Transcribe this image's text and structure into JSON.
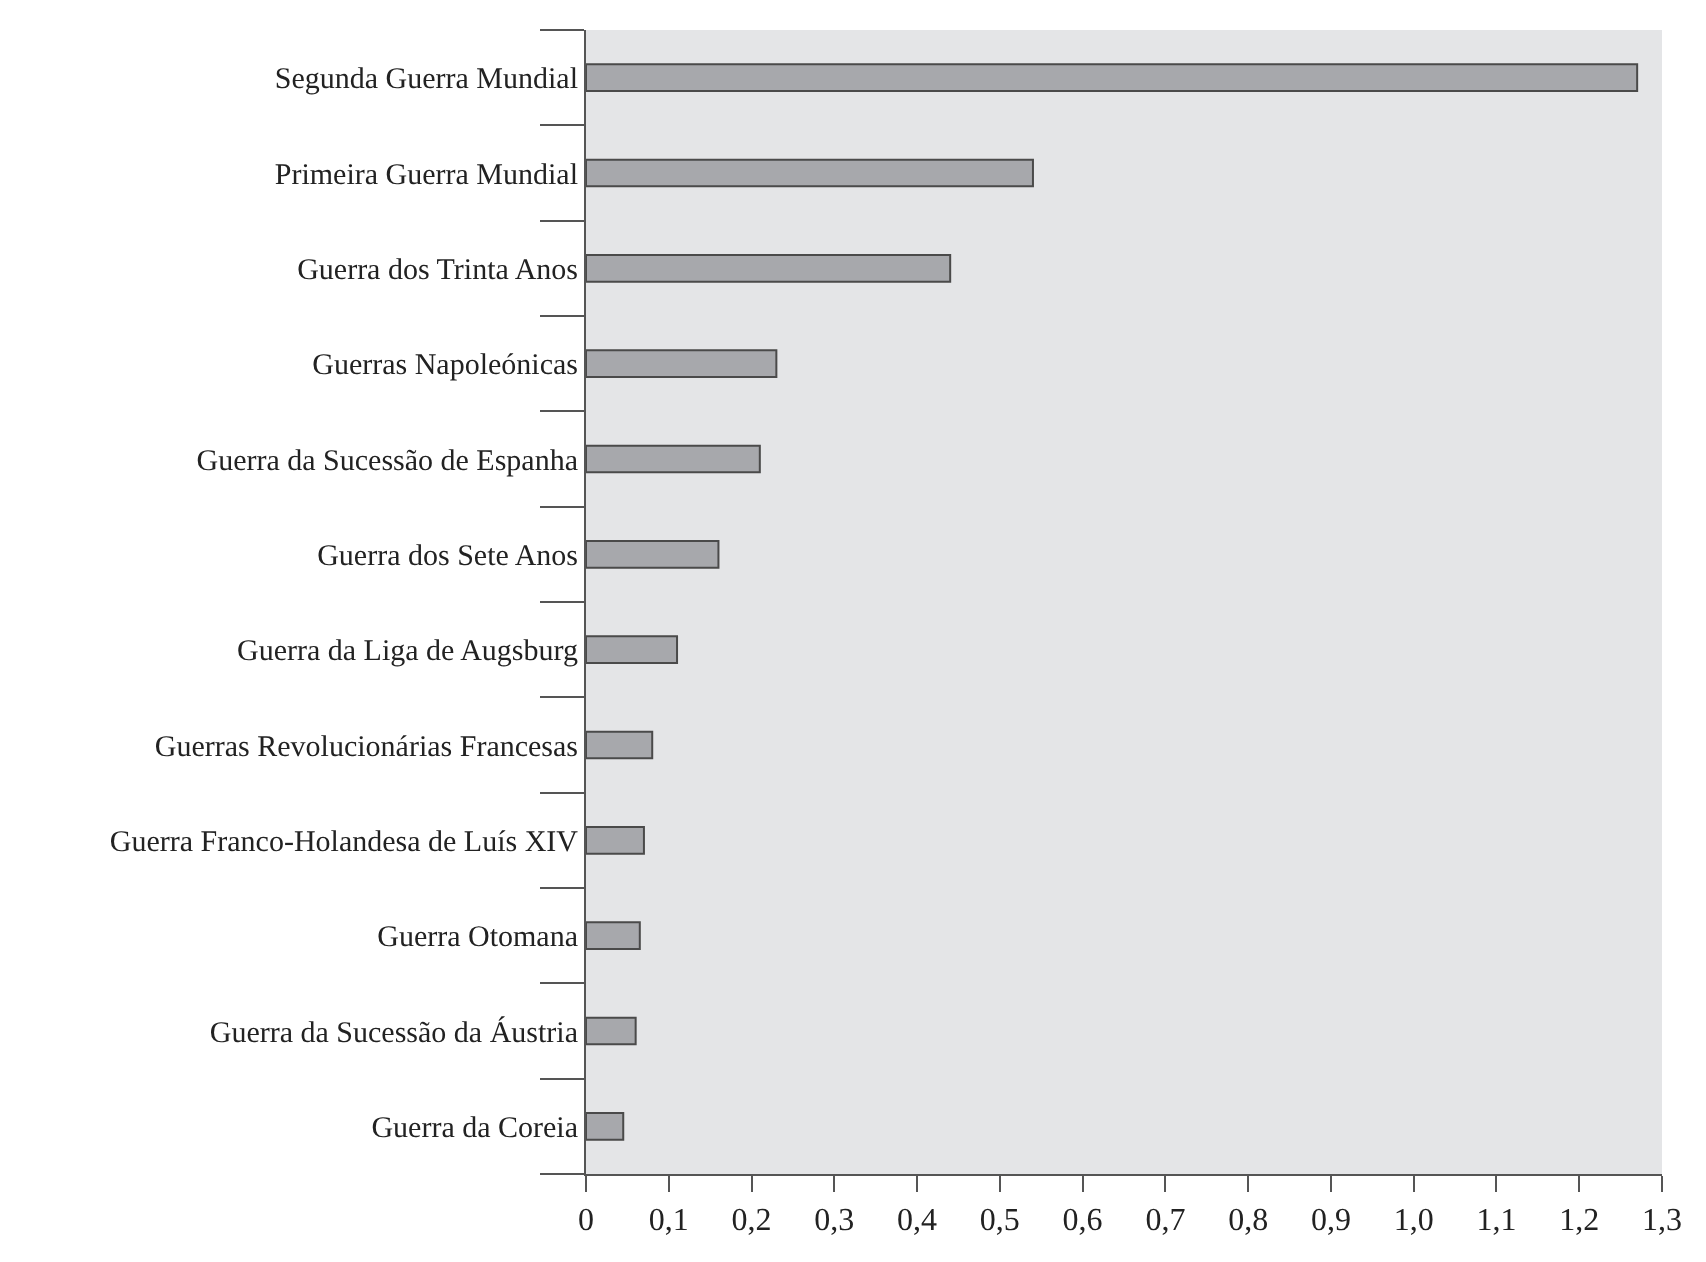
{
  "chart_data": {
    "type": "bar",
    "orientation": "horizontal",
    "categories": [
      "Segunda Guerra Mundial",
      "Primeira Guerra Mundial",
      "Guerra dos Trinta Anos",
      "Guerras Napoleónicas",
      "Guerra da Sucessão de Espanha",
      "Guerra dos Sete Anos",
      "Guerra da Liga de Augsburg",
      "Guerras Revolucionárias Francesas",
      "Guerra Franco-Holandesa de Luís XIV",
      "Guerra Otomana",
      "Guerra da Sucessão da Áustria",
      "Guerra da Coreia"
    ],
    "values": [
      1.27,
      0.54,
      0.44,
      0.23,
      0.21,
      0.16,
      0.11,
      0.08,
      0.07,
      0.065,
      0.06,
      0.045
    ],
    "color": "#a7a8ac",
    "xlim": [
      0,
      1.3
    ],
    "xticks": [
      0,
      {
        "value": 0.1,
        "label": "0,1"
      },
      {
        "value": 0.2,
        "label": "0,2"
      },
      {
        "value": 0.3,
        "label": "0,3"
      },
      {
        "value": 0.4,
        "label": "0,4"
      },
      {
        "value": 0.5,
        "label": "0,5"
      },
      {
        "value": 0.6,
        "label": "0,6"
      },
      {
        "value": 0.7,
        "label": "0,7"
      },
      {
        "value": 0.8,
        "label": "0,8"
      },
      {
        "value": 0.9,
        "label": "0,9"
      },
      {
        "value": 1.0,
        "label": "1,0"
      },
      {
        "value": 1.1,
        "label": "1,1"
      },
      {
        "value": 1.2,
        "label": "1,2"
      },
      {
        "value": 1.3,
        "label": "1,3"
      }
    ],
    "grid": false,
    "legend": false
  }
}
